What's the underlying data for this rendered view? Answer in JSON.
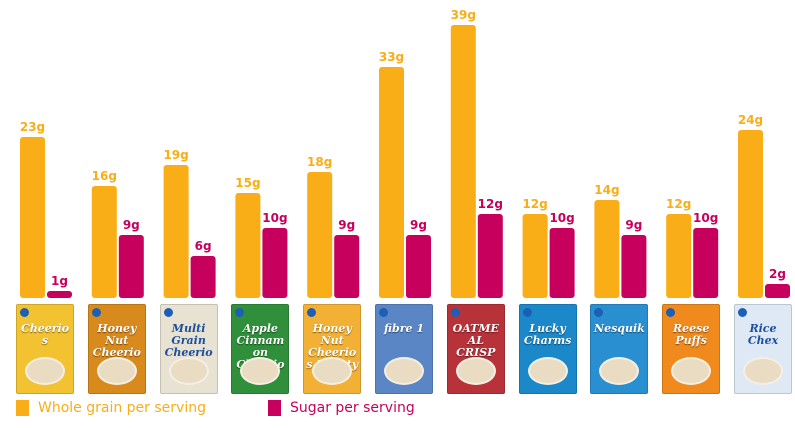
{
  "colors": {
    "whole_grain": "#f9ad16",
    "sugar": "#c7005e"
  },
  "legend": {
    "whole_grain_label": "Whole grain per serving",
    "sugar_label": "Sugar per serving"
  },
  "chart_data": {
    "type": "bar",
    "categories": [
      "Cheerios",
      "Honey Nut Cheerios",
      "Multi Grain Cheerios",
      "Apple Cinnamon Cheerios",
      "Honey Nut Cheerios Hearty Oat",
      "fibre 1",
      "Oatmeal Crisp",
      "Lucky Charms",
      "Nesquik",
      "Reese Puffs",
      "Rice Chex"
    ],
    "series": [
      {
        "name": "Whole grain per serving",
        "values": [
          23,
          16,
          19,
          15,
          18,
          33,
          39,
          12,
          14,
          12,
          24
        ],
        "labels": [
          "23g",
          "16g",
          "19g",
          "15g",
          "18g",
          "33g",
          "39g",
          "12g",
          "14g",
          "12g",
          "24g"
        ]
      },
      {
        "name": "Sugar per serving",
        "values": [
          1,
          9,
          6,
          10,
          9,
          9,
          12,
          10,
          9,
          10,
          2
        ],
        "labels": [
          "1g",
          "9g",
          "6g",
          "10g",
          "9g",
          "9g",
          "12g",
          "10g",
          "9g",
          "10g",
          "2g"
        ]
      }
    ],
    "legend_position": "bottom-left",
    "grid": false
  },
  "boxes": [
    {
      "brand": "Cheerios",
      "color": "#f2c230"
    },
    {
      "brand": "Honey Nut Cheerios",
      "color": "#d98a1c"
    },
    {
      "brand": "Multi Grain Cheerios",
      "color": "#e8e2d2"
    },
    {
      "brand": "Apple Cinnamon Cheerios",
      "color": "#2f8f3a"
    },
    {
      "brand": "Honey Nut Cheerios Hearty Oat",
      "color": "#f2b134"
    },
    {
      "brand": "fibre 1",
      "color": "#5b86c6"
    },
    {
      "brand": "OATMEAL CRISP",
      "color": "#b8323a"
    },
    {
      "brand": "Lucky Charms",
      "color": "#1b88c9"
    },
    {
      "brand": "Nesquik",
      "color": "#2a8fd0"
    },
    {
      "brand": "Reese Puffs",
      "color": "#f08a1d"
    },
    {
      "brand": "Rice Chex",
      "color": "#dfe9f5"
    }
  ]
}
